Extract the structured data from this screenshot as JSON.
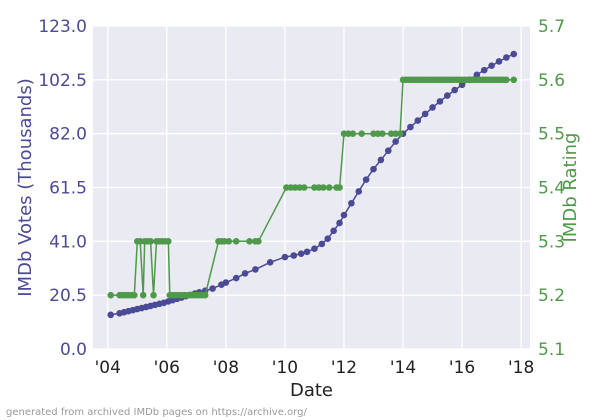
{
  "chart_data": {
    "type": "line",
    "xlabel": "Date",
    "x_ticks": [
      "'04",
      "'06",
      "'08",
      "'10",
      "'12",
      "'14",
      "'16",
      "'18"
    ],
    "x_tick_years": [
      2004,
      2006,
      2008,
      2010,
      2012,
      2014,
      2016,
      2018
    ],
    "xlim": [
      2003.5,
      2018.3
    ],
    "grid": true,
    "axes": {
      "left": {
        "label": "IMDb Votes (Thousands)",
        "ylim": [
          0,
          123
        ],
        "ticks": [
          "0.0",
          "20.5",
          "41.0",
          "61.5",
          "82.0",
          "102.5",
          "123.0"
        ],
        "tick_values": [
          0,
          20.5,
          41,
          61.5,
          82,
          102.5,
          123
        ],
        "color": "#4b4a96"
      },
      "right": {
        "label": "IMDb Rating",
        "ylim": [
          5.1,
          5.7
        ],
        "ticks": [
          "5.1",
          "5.2",
          "5.3",
          "5.4",
          "5.5",
          "5.6",
          "5.7"
        ],
        "tick_values": [
          5.1,
          5.2,
          5.3,
          5.4,
          5.5,
          5.6,
          5.7
        ],
        "color": "#4e9a4a"
      }
    },
    "series": [
      {
        "axis": "left",
        "color": "#4b4a96",
        "points": [
          [
            2004.1,
            13.0
          ],
          [
            2004.4,
            13.6
          ],
          [
            2004.55,
            14.0
          ],
          [
            2004.7,
            14.4
          ],
          [
            2004.85,
            14.8
          ],
          [
            2005.0,
            15.2
          ],
          [
            2005.15,
            15.6
          ],
          [
            2005.3,
            16.0
          ],
          [
            2005.45,
            16.4
          ],
          [
            2005.6,
            16.8
          ],
          [
            2005.75,
            17.2
          ],
          [
            2005.9,
            17.6
          ],
          [
            2006.05,
            18.1
          ],
          [
            2006.2,
            18.6
          ],
          [
            2006.35,
            19.1
          ],
          [
            2006.5,
            19.6
          ],
          [
            2006.65,
            20.1
          ],
          [
            2006.8,
            20.6
          ],
          [
            2006.95,
            21.1
          ],
          [
            2007.1,
            21.6
          ],
          [
            2007.3,
            22.2
          ],
          [
            2007.55,
            23.0
          ],
          [
            2007.85,
            24.5
          ],
          [
            2008.0,
            25.3
          ],
          [
            2008.35,
            27.0
          ],
          [
            2008.65,
            28.8
          ],
          [
            2009.0,
            30.3
          ],
          [
            2009.5,
            33.0
          ],
          [
            2010.0,
            35.0
          ],
          [
            2010.3,
            35.6
          ],
          [
            2010.55,
            36.3
          ],
          [
            2010.75,
            37.0
          ],
          [
            2011.0,
            38.2
          ],
          [
            2011.25,
            40.0
          ],
          [
            2011.45,
            42.0
          ],
          [
            2011.65,
            45.0
          ],
          [
            2011.85,
            48.0
          ],
          [
            2012.0,
            51.0
          ],
          [
            2012.25,
            55.5
          ],
          [
            2012.5,
            60.0
          ],
          [
            2012.75,
            64.5
          ],
          [
            2013.0,
            68.5
          ],
          [
            2013.25,
            72.0
          ],
          [
            2013.5,
            75.5
          ],
          [
            2013.75,
            79.0
          ],
          [
            2014.0,
            82.0
          ],
          [
            2014.25,
            84.5
          ],
          [
            2014.5,
            87.0
          ],
          [
            2014.75,
            89.5
          ],
          [
            2015.0,
            92.0
          ],
          [
            2015.25,
            94.3
          ],
          [
            2015.5,
            96.5
          ],
          [
            2015.75,
            98.6
          ],
          [
            2016.0,
            100.6
          ],
          [
            2016.25,
            102.5
          ],
          [
            2016.5,
            104.4
          ],
          [
            2016.75,
            106.2
          ],
          [
            2017.0,
            107.9
          ],
          [
            2017.25,
            109.5
          ],
          [
            2017.5,
            111.0
          ],
          [
            2017.75,
            112.3
          ]
        ]
      },
      {
        "axis": "right",
        "color": "#4e9a4a",
        "points": [
          [
            2004.1,
            5.2
          ],
          [
            2004.4,
            5.2
          ],
          [
            2004.5,
            5.2
          ],
          [
            2004.6,
            5.2
          ],
          [
            2004.7,
            5.2
          ],
          [
            2004.8,
            5.2
          ],
          [
            2004.9,
            5.2
          ],
          [
            2005.0,
            5.3
          ],
          [
            2005.1,
            5.3
          ],
          [
            2005.2,
            5.2
          ],
          [
            2005.25,
            5.3
          ],
          [
            2005.35,
            5.3
          ],
          [
            2005.45,
            5.3
          ],
          [
            2005.55,
            5.2
          ],
          [
            2005.65,
            5.3
          ],
          [
            2005.75,
            5.3
          ],
          [
            2005.85,
            5.3
          ],
          [
            2005.95,
            5.3
          ],
          [
            2006.05,
            5.3
          ],
          [
            2006.1,
            5.2
          ],
          [
            2006.2,
            5.2
          ],
          [
            2006.3,
            5.2
          ],
          [
            2006.4,
            5.2
          ],
          [
            2006.5,
            5.2
          ],
          [
            2006.6,
            5.2
          ],
          [
            2006.7,
            5.2
          ],
          [
            2006.8,
            5.2
          ],
          [
            2006.9,
            5.2
          ],
          [
            2007.0,
            5.2
          ],
          [
            2007.1,
            5.2
          ],
          [
            2007.2,
            5.2
          ],
          [
            2007.3,
            5.2
          ],
          [
            2007.75,
            5.3
          ],
          [
            2007.85,
            5.3
          ],
          [
            2007.95,
            5.3
          ],
          [
            2008.1,
            5.3
          ],
          [
            2008.35,
            5.3
          ],
          [
            2008.8,
            5.3
          ],
          [
            2009.0,
            5.3
          ],
          [
            2009.1,
            5.3
          ],
          [
            2010.05,
            5.4
          ],
          [
            2010.2,
            5.4
          ],
          [
            2010.35,
            5.4
          ],
          [
            2010.5,
            5.4
          ],
          [
            2010.65,
            5.4
          ],
          [
            2011.0,
            5.4
          ],
          [
            2011.15,
            5.4
          ],
          [
            2011.3,
            5.4
          ],
          [
            2011.5,
            5.4
          ],
          [
            2011.75,
            5.4
          ],
          [
            2011.85,
            5.4
          ],
          [
            2012.0,
            5.5
          ],
          [
            2012.15,
            5.5
          ],
          [
            2012.3,
            5.5
          ],
          [
            2012.6,
            5.5
          ],
          [
            2013.0,
            5.5
          ],
          [
            2013.15,
            5.5
          ],
          [
            2013.3,
            5.5
          ],
          [
            2013.6,
            5.5
          ],
          [
            2013.75,
            5.5
          ],
          [
            2013.9,
            5.5
          ],
          [
            2014.0,
            5.6
          ],
          [
            2014.1,
            5.6
          ],
          [
            2014.2,
            5.6
          ],
          [
            2014.3,
            5.6
          ],
          [
            2014.4,
            5.6
          ],
          [
            2014.5,
            5.6
          ],
          [
            2014.6,
            5.6
          ],
          [
            2014.7,
            5.6
          ],
          [
            2014.8,
            5.6
          ],
          [
            2014.9,
            5.6
          ],
          [
            2015.0,
            5.6
          ],
          [
            2015.1,
            5.6
          ],
          [
            2015.2,
            5.6
          ],
          [
            2015.3,
            5.6
          ],
          [
            2015.4,
            5.6
          ],
          [
            2015.5,
            5.6
          ],
          [
            2015.6,
            5.6
          ],
          [
            2015.7,
            5.6
          ],
          [
            2015.8,
            5.6
          ],
          [
            2015.9,
            5.6
          ],
          [
            2016.0,
            5.6
          ],
          [
            2016.1,
            5.6
          ],
          [
            2016.2,
            5.6
          ],
          [
            2016.3,
            5.6
          ],
          [
            2016.4,
            5.6
          ],
          [
            2016.5,
            5.6
          ],
          [
            2016.6,
            5.6
          ],
          [
            2016.7,
            5.6
          ],
          [
            2016.8,
            5.6
          ],
          [
            2016.9,
            5.6
          ],
          [
            2017.0,
            5.6
          ],
          [
            2017.1,
            5.6
          ],
          [
            2017.2,
            5.6
          ],
          [
            2017.3,
            5.6
          ],
          [
            2017.4,
            5.6
          ],
          [
            2017.5,
            5.6
          ],
          [
            2017.75,
            5.6
          ]
        ]
      }
    ]
  },
  "footer_text": "generated from archived IMDb pages on https://archive.org/"
}
